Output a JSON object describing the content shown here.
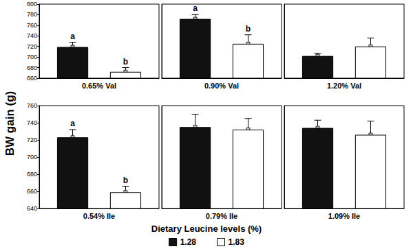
{
  "ylabel": "BW gain (g)",
  "legend_title": "Dietary Leucine levels (%)",
  "chart_data": [
    {
      "type": "bar",
      "categories": [
        "0.65% Val"
      ],
      "ylim": [
        660,
        800
      ],
      "yticks": [
        660,
        680,
        700,
        720,
        740,
        760,
        780,
        800
      ],
      "series": [
        {
          "name": "1.28",
          "color": "#111111",
          "values": [
            719
          ],
          "errors": [
            9
          ],
          "annotations": [
            "a"
          ]
        },
        {
          "name": "1.83",
          "color": "#ffffff",
          "values": [
            672
          ],
          "errors": [
            8
          ],
          "annotations": [
            "b"
          ]
        }
      ]
    },
    {
      "type": "bar",
      "categories": [
        "0.90% Val"
      ],
      "ylim": [
        660,
        800
      ],
      "yticks": [
        660,
        680,
        700,
        720,
        740,
        760,
        780,
        800
      ],
      "tick_labels": "x",
      "series": [
        {
          "name": "1.28",
          "color": "#111111",
          "values": [
            772
          ],
          "errors": [
            8
          ],
          "annotations": [
            "a"
          ]
        },
        {
          "name": "1.83",
          "color": "#ffffff",
          "values": [
            725
          ],
          "errors": [
            17
          ],
          "annotations": [
            "b"
          ]
        }
      ]
    },
    {
      "type": "bar",
      "categories": [
        "1.20% Val"
      ],
      "ylim": [
        660,
        800
      ],
      "yticks": [
        660,
        680,
        700,
        720,
        740,
        760,
        780,
        800
      ],
      "tick_labels": "x",
      "series": [
        {
          "name": "1.28",
          "color": "#111111",
          "values": [
            702
          ],
          "errors": [
            5
          ]
        },
        {
          "name": "1.83",
          "color": "#ffffff",
          "values": [
            720
          ],
          "errors": [
            16
          ]
        }
      ]
    },
    {
      "type": "bar",
      "categories": [
        "0.54% Ile"
      ],
      "ylim": [
        640,
        760
      ],
      "yticks": [
        640,
        660,
        680,
        700,
        720,
        740,
        760
      ],
      "series": [
        {
          "name": "1.28",
          "color": "#111111",
          "values": [
            723
          ],
          "errors": [
            9
          ],
          "annotations": [
            "a"
          ]
        },
        {
          "name": "1.83",
          "color": "#ffffff",
          "values": [
            659
          ],
          "errors": [
            7
          ],
          "annotations": [
            "b"
          ]
        }
      ]
    },
    {
      "type": "bar",
      "categories": [
        "0.79% Ile"
      ],
      "ylim": [
        640,
        760
      ],
      "yticks": [
        640,
        660,
        680,
        700,
        720,
        740,
        760
      ],
      "tick_labels": "x",
      "series": [
        {
          "name": "1.28",
          "color": "#111111",
          "values": [
            735
          ],
          "errors": [
            15
          ]
        },
        {
          "name": "1.83",
          "color": "#ffffff",
          "values": [
            732
          ],
          "errors": [
            13
          ]
        }
      ]
    },
    {
      "type": "bar",
      "categories": [
        "1.09% Ile"
      ],
      "ylim": [
        640,
        760
      ],
      "yticks": [
        640,
        660,
        680,
        700,
        720,
        740,
        760
      ],
      "tick_labels": "x",
      "series": [
        {
          "name": "1.28",
          "color": "#111111",
          "values": [
            734
          ],
          "errors": [
            9
          ]
        },
        {
          "name": "1.83",
          "color": "#ffffff",
          "values": [
            726
          ],
          "errors": [
            16
          ]
        }
      ]
    }
  ]
}
